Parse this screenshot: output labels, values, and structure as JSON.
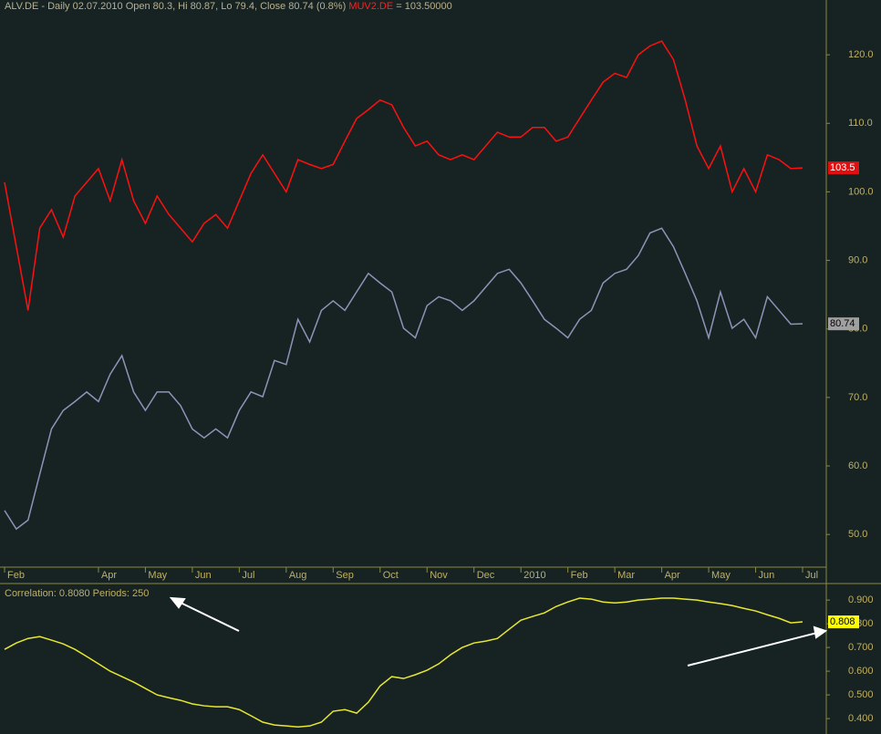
{
  "chart_data": [
    {
      "type": "line",
      "header": {
        "main": "ALV.DE - Daily 02.07.2010 Open 80.3, Hi 80.87, Lo 79.4, Close 80.74 (0.8%)",
        "compare": "MUV2.DE",
        "compare_value": "= 103.50000"
      },
      "categories": [
        "Feb",
        null,
        null,
        null,
        null,
        null,
        null,
        null,
        "Apr",
        null,
        null,
        null,
        "May",
        null,
        null,
        null,
        "Jun",
        null,
        null,
        null,
        "Jul",
        null,
        null,
        null,
        "Aug",
        null,
        null,
        null,
        "Sep",
        null,
        null,
        null,
        "Oct",
        null,
        null,
        null,
        "Nov",
        null,
        null,
        null,
        "Dec",
        null,
        null,
        null,
        "2010",
        null,
        null,
        null,
        "Feb",
        null,
        null,
        null,
        "Mar",
        null,
        null,
        null,
        "Apr",
        null,
        null,
        null,
        "May",
        null,
        null,
        null,
        "Jun",
        null,
        null,
        null,
        "Jul"
      ],
      "series": [
        {
          "name": "MUV2.DE",
          "color": "#ff1010",
          "last_label": "103.5",
          "values": [
            101.4,
            92,
            82.7,
            94.7,
            97.4,
            93.4,
            99.4,
            101.4,
            103.4,
            98.7,
            104.7,
            98.7,
            95.4,
            99.4,
            96.7,
            94.7,
            92.7,
            95.4,
            96.7,
            94.7,
            98.7,
            102.7,
            105.4,
            102.7,
            100,
            104.7,
            104,
            103.4,
            104,
            107.4,
            110.7,
            112,
            113.4,
            112.7,
            109.4,
            106.7,
            107.4,
            105.4,
            104.7,
            105.4,
            104.7,
            106.7,
            108.7,
            108,
            108,
            109.4,
            109.4,
            107.4,
            108,
            110.7,
            113.4,
            116,
            117.3,
            116.7,
            120,
            121.3,
            122,
            119.3,
            113.4,
            106.7,
            103.4,
            106.7,
            100,
            103.4,
            100,
            105.4,
            104.7,
            103.4,
            103.5
          ]
        },
        {
          "name": "ALV.DE",
          "color": "#8c94b8",
          "last_label": "80.74",
          "values": [
            53.5,
            50.8,
            52.1,
            58.8,
            65.4,
            68.1,
            69.4,
            70.8,
            69.4,
            73.4,
            76.1,
            70.8,
            68.1,
            70.8,
            70.8,
            68.8,
            65.4,
            64.1,
            65.4,
            64.1,
            68.1,
            70.8,
            70.1,
            75.4,
            74.8,
            81.4,
            78.1,
            82.7,
            84.1,
            82.7,
            85.4,
            88.1,
            86.7,
            85.4,
            80.1,
            78.7,
            83.4,
            84.7,
            84.1,
            82.7,
            84.1,
            86.1,
            88.1,
            88.7,
            86.7,
            84.1,
            81.4,
            80.1,
            78.7,
            81.4,
            82.7,
            86.7,
            88.1,
            88.7,
            90.7,
            94,
            94.7,
            92,
            88.1,
            84.1,
            78.7,
            85.4,
            80.1,
            81.4,
            78.7,
            84.7,
            82.7,
            80.7,
            80.74
          ]
        }
      ],
      "ylim": [
        45.5,
        128
      ],
      "yticks": [
        {
          "value": 50,
          "label": "50.0"
        },
        {
          "value": 60,
          "label": "60.0"
        },
        {
          "value": 70,
          "label": "70.0"
        },
        {
          "value": 80,
          "label": "80.0"
        },
        {
          "value": 90,
          "label": "90.0"
        },
        {
          "value": 100,
          "label": "100.0"
        },
        {
          "value": 110,
          "label": "110.0"
        },
        {
          "value": 120,
          "label": "120.0"
        }
      ]
    },
    {
      "type": "line",
      "title": "Correlation: 0.8080 Periods: 250",
      "color": "#e8e830",
      "last_label": "0.808",
      "values": [
        0.692,
        0.719,
        0.738,
        0.746,
        0.731,
        0.715,
        0.692,
        0.662,
        0.631,
        0.6,
        0.577,
        0.554,
        0.527,
        0.5,
        0.488,
        0.477,
        0.462,
        0.454,
        0.45,
        0.45,
        0.438,
        0.412,
        0.385,
        0.373,
        0.369,
        0.365,
        0.369,
        0.385,
        0.431,
        0.438,
        0.423,
        0.469,
        0.538,
        0.577,
        0.569,
        0.585,
        0.604,
        0.631,
        0.669,
        0.7,
        0.719,
        0.727,
        0.738,
        0.777,
        0.815,
        0.831,
        0.846,
        0.873,
        0.892,
        0.908,
        0.904,
        0.892,
        0.888,
        0.892,
        0.9,
        0.904,
        0.908,
        0.908,
        0.904,
        0.9,
        0.892,
        0.885,
        0.877,
        0.865,
        0.854,
        0.838,
        0.823,
        0.804,
        0.808
      ],
      "ylim": [
        0.335,
        0.962
      ],
      "yticks": [
        {
          "value": 0.4,
          "label": "0.400"
        },
        {
          "value": 0.5,
          "label": "0.500"
        },
        {
          "value": 0.6,
          "label": "0.600"
        },
        {
          "value": 0.7,
          "label": "0.700"
        },
        {
          "value": 0.8,
          "label": "0.800"
        },
        {
          "value": 0.9,
          "label": "0.900"
        }
      ]
    }
  ]
}
